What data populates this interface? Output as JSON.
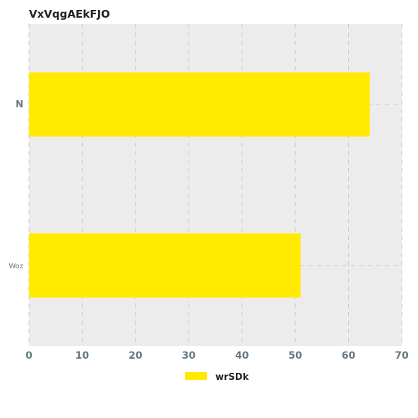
{
  "chart_data": {
    "type": "bar",
    "orientation": "horizontal",
    "title": "VxVqgAEkFJO",
    "xlabel": "",
    "ylabel": "",
    "categories": [
      "N",
      "Woz"
    ],
    "series": [
      {
        "name": "wrSDk",
        "values": [
          64,
          51
        ],
        "color": "#ffea00"
      }
    ],
    "xlim": [
      0,
      70
    ],
    "x_ticks": [
      "0",
      "10",
      "20",
      "30",
      "40",
      "50",
      "60",
      "70"
    ],
    "grid": true,
    "legend_position": "bottom-center",
    "colors": {
      "plot_background": "#ececec",
      "grid": "#c8c8c8",
      "tick_label": "#657883"
    }
  }
}
